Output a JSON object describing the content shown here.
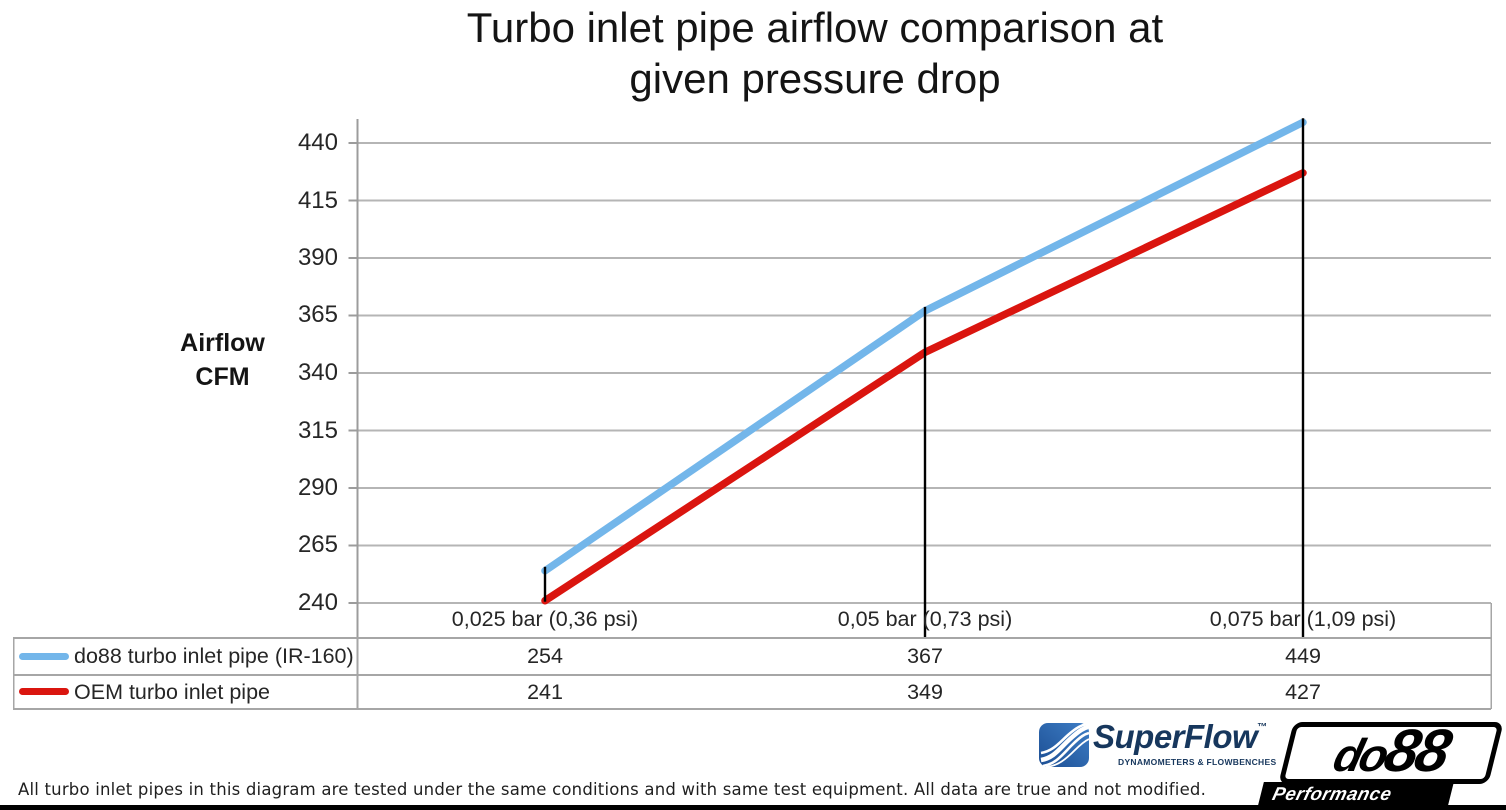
{
  "title": {
    "line1": "Turbo inlet pipe airflow comparison at",
    "line2": "given pressure drop"
  },
  "y_axis": {
    "label_line1": "Airflow",
    "label_line2": "CFM",
    "ticks": [
      "440",
      "415",
      "390",
      "365",
      "340",
      "315",
      "290",
      "265",
      "240"
    ]
  },
  "x_axis": {
    "categories": [
      "0,025 bar (0,36 psi)",
      "0,05 bar (0,73 psi)",
      "0,075 bar (1,09 psi)"
    ]
  },
  "table": {
    "rows": [
      {
        "label": "do88 turbo inlet pipe (IR-160)",
        "color": "#73B6EA",
        "values": [
          "254",
          "367",
          "449"
        ]
      },
      {
        "label": "OEM turbo inlet pipe",
        "color": "#DA150F",
        "values": [
          "241",
          "349",
          "427"
        ]
      }
    ]
  },
  "footnote": "All turbo inlet pipes in this diagram are tested under the same conditions and with same test equipment. All data are true and not modified.",
  "logos": {
    "superflow": {
      "name": "SuperFlow",
      "tm": "™",
      "tagline": "DYNAMOMETERS & FLOWBENCHES"
    },
    "do88": {
      "name_part1": "do",
      "name_part2": "88",
      "tagline": "Performance"
    }
  },
  "colors": {
    "series_blue": "#73B6EA",
    "series_red": "#DA150F",
    "gridline": "#B5B5B5",
    "axis": "#9C9C9C",
    "table_border": "#A6A6A6",
    "dropline": "#000000",
    "superflow_navy": "#17375D",
    "superflow_blue": "#2E6DB5"
  },
  "chart_data": {
    "type": "line",
    "title": "Turbo inlet pipe airflow comparison at given pressure drop",
    "categories": [
      "0,025 bar (0,36 psi)",
      "0,05 bar (0,73 psi)",
      "0,075 bar (1,09 psi)"
    ],
    "series": [
      {
        "name": "do88 turbo inlet pipe (IR-160)",
        "color": "#73B6EA",
        "values": [
          254,
          367,
          449
        ]
      },
      {
        "name": "OEM turbo inlet pipe",
        "color": "#DA150F",
        "values": [
          241,
          349,
          427
        ]
      }
    ],
    "xlabel": "",
    "ylabel": "Airflow CFM",
    "ylim": [
      240,
      452
    ],
    "yticks": [
      240,
      265,
      290,
      315,
      340,
      365,
      390,
      415,
      440
    ],
    "grid": true,
    "legend_position": "data-table-below"
  }
}
